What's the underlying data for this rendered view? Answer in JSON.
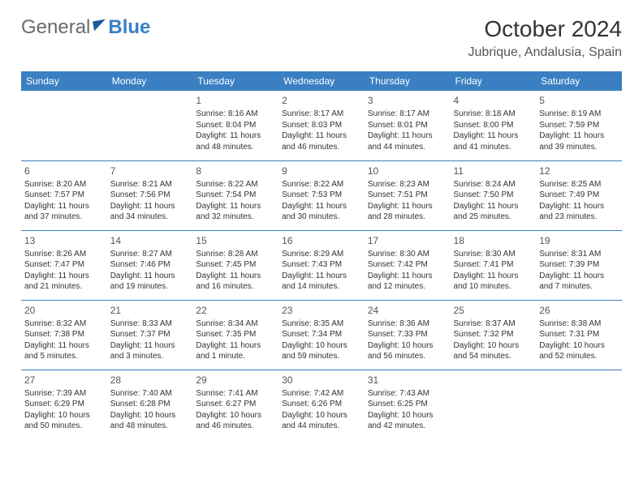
{
  "brand": {
    "part1": "General",
    "part2": "Blue"
  },
  "title": "October 2024",
  "location": "Jubrique, Andalusia, Spain",
  "colors": {
    "header_bg": "#3a7fc2",
    "header_text": "#ffffff",
    "row_border": "#3a7fc2",
    "text": "#333333",
    "title_text": "#333333"
  },
  "weekdays": [
    "Sunday",
    "Monday",
    "Tuesday",
    "Wednesday",
    "Thursday",
    "Friday",
    "Saturday"
  ],
  "weeks": [
    [
      null,
      null,
      {
        "n": "1",
        "sunrise": "Sunrise: 8:16 AM",
        "sunset": "Sunset: 8:04 PM",
        "daylight": "Daylight: 11 hours and 48 minutes."
      },
      {
        "n": "2",
        "sunrise": "Sunrise: 8:17 AM",
        "sunset": "Sunset: 8:03 PM",
        "daylight": "Daylight: 11 hours and 46 minutes."
      },
      {
        "n": "3",
        "sunrise": "Sunrise: 8:17 AM",
        "sunset": "Sunset: 8:01 PM",
        "daylight": "Daylight: 11 hours and 44 minutes."
      },
      {
        "n": "4",
        "sunrise": "Sunrise: 8:18 AM",
        "sunset": "Sunset: 8:00 PM",
        "daylight": "Daylight: 11 hours and 41 minutes."
      },
      {
        "n": "5",
        "sunrise": "Sunrise: 8:19 AM",
        "sunset": "Sunset: 7:59 PM",
        "daylight": "Daylight: 11 hours and 39 minutes."
      }
    ],
    [
      {
        "n": "6",
        "sunrise": "Sunrise: 8:20 AM",
        "sunset": "Sunset: 7:57 PM",
        "daylight": "Daylight: 11 hours and 37 minutes."
      },
      {
        "n": "7",
        "sunrise": "Sunrise: 8:21 AM",
        "sunset": "Sunset: 7:56 PM",
        "daylight": "Daylight: 11 hours and 34 minutes."
      },
      {
        "n": "8",
        "sunrise": "Sunrise: 8:22 AM",
        "sunset": "Sunset: 7:54 PM",
        "daylight": "Daylight: 11 hours and 32 minutes."
      },
      {
        "n": "9",
        "sunrise": "Sunrise: 8:22 AM",
        "sunset": "Sunset: 7:53 PM",
        "daylight": "Daylight: 11 hours and 30 minutes."
      },
      {
        "n": "10",
        "sunrise": "Sunrise: 8:23 AM",
        "sunset": "Sunset: 7:51 PM",
        "daylight": "Daylight: 11 hours and 28 minutes."
      },
      {
        "n": "11",
        "sunrise": "Sunrise: 8:24 AM",
        "sunset": "Sunset: 7:50 PM",
        "daylight": "Daylight: 11 hours and 25 minutes."
      },
      {
        "n": "12",
        "sunrise": "Sunrise: 8:25 AM",
        "sunset": "Sunset: 7:49 PM",
        "daylight": "Daylight: 11 hours and 23 minutes."
      }
    ],
    [
      {
        "n": "13",
        "sunrise": "Sunrise: 8:26 AM",
        "sunset": "Sunset: 7:47 PM",
        "daylight": "Daylight: 11 hours and 21 minutes."
      },
      {
        "n": "14",
        "sunrise": "Sunrise: 8:27 AM",
        "sunset": "Sunset: 7:46 PM",
        "daylight": "Daylight: 11 hours and 19 minutes."
      },
      {
        "n": "15",
        "sunrise": "Sunrise: 8:28 AM",
        "sunset": "Sunset: 7:45 PM",
        "daylight": "Daylight: 11 hours and 16 minutes."
      },
      {
        "n": "16",
        "sunrise": "Sunrise: 8:29 AM",
        "sunset": "Sunset: 7:43 PM",
        "daylight": "Daylight: 11 hours and 14 minutes."
      },
      {
        "n": "17",
        "sunrise": "Sunrise: 8:30 AM",
        "sunset": "Sunset: 7:42 PM",
        "daylight": "Daylight: 11 hours and 12 minutes."
      },
      {
        "n": "18",
        "sunrise": "Sunrise: 8:30 AM",
        "sunset": "Sunset: 7:41 PM",
        "daylight": "Daylight: 11 hours and 10 minutes."
      },
      {
        "n": "19",
        "sunrise": "Sunrise: 8:31 AM",
        "sunset": "Sunset: 7:39 PM",
        "daylight": "Daylight: 11 hours and 7 minutes."
      }
    ],
    [
      {
        "n": "20",
        "sunrise": "Sunrise: 8:32 AM",
        "sunset": "Sunset: 7:38 PM",
        "daylight": "Daylight: 11 hours and 5 minutes."
      },
      {
        "n": "21",
        "sunrise": "Sunrise: 8:33 AM",
        "sunset": "Sunset: 7:37 PM",
        "daylight": "Daylight: 11 hours and 3 minutes."
      },
      {
        "n": "22",
        "sunrise": "Sunrise: 8:34 AM",
        "sunset": "Sunset: 7:35 PM",
        "daylight": "Daylight: 11 hours and 1 minute."
      },
      {
        "n": "23",
        "sunrise": "Sunrise: 8:35 AM",
        "sunset": "Sunset: 7:34 PM",
        "daylight": "Daylight: 10 hours and 59 minutes."
      },
      {
        "n": "24",
        "sunrise": "Sunrise: 8:36 AM",
        "sunset": "Sunset: 7:33 PM",
        "daylight": "Daylight: 10 hours and 56 minutes."
      },
      {
        "n": "25",
        "sunrise": "Sunrise: 8:37 AM",
        "sunset": "Sunset: 7:32 PM",
        "daylight": "Daylight: 10 hours and 54 minutes."
      },
      {
        "n": "26",
        "sunrise": "Sunrise: 8:38 AM",
        "sunset": "Sunset: 7:31 PM",
        "daylight": "Daylight: 10 hours and 52 minutes."
      }
    ],
    [
      {
        "n": "27",
        "sunrise": "Sunrise: 7:39 AM",
        "sunset": "Sunset: 6:29 PM",
        "daylight": "Daylight: 10 hours and 50 minutes."
      },
      {
        "n": "28",
        "sunrise": "Sunrise: 7:40 AM",
        "sunset": "Sunset: 6:28 PM",
        "daylight": "Daylight: 10 hours and 48 minutes."
      },
      {
        "n": "29",
        "sunrise": "Sunrise: 7:41 AM",
        "sunset": "Sunset: 6:27 PM",
        "daylight": "Daylight: 10 hours and 46 minutes."
      },
      {
        "n": "30",
        "sunrise": "Sunrise: 7:42 AM",
        "sunset": "Sunset: 6:26 PM",
        "daylight": "Daylight: 10 hours and 44 minutes."
      },
      {
        "n": "31",
        "sunrise": "Sunrise: 7:43 AM",
        "sunset": "Sunset: 6:25 PM",
        "daylight": "Daylight: 10 hours and 42 minutes."
      },
      null,
      null
    ]
  ]
}
